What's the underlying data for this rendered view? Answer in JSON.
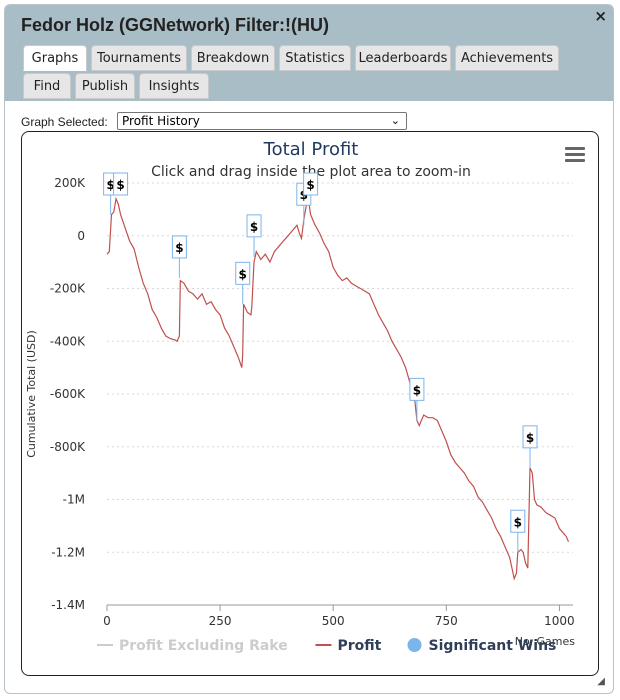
{
  "window": {
    "title": "Fedor Holz (GGNetwork) Filter:!(HU)",
    "close_label": "×"
  },
  "tabs_row1": [
    "Graphs",
    "Tournaments",
    "Breakdown",
    "Statistics",
    "Leaderboards",
    "Achievements"
  ],
  "tabs_row2": [
    "Find",
    "Publish",
    "Insights"
  ],
  "graph_selector": {
    "label": "Graph Selected:",
    "value": "Profit History"
  },
  "chart_data": {
    "type": "line",
    "title": "Total Profit",
    "subtitle": "Click and drag inside the plot area to zoom-in",
    "xlabel": "No. Games",
    "ylabel": "Cumulative Total (USD)",
    "xlim": [
      0,
      1030
    ],
    "ylim": [
      -1400000,
      200000
    ],
    "x_ticks": [
      0,
      250,
      500,
      750,
      1000
    ],
    "y_ticks": [
      200000,
      0,
      -200000,
      -400000,
      -600000,
      -800000,
      -1000000,
      -1200000,
      -1400000
    ],
    "y_tick_labels": [
      "200K",
      "0",
      "-200K",
      "-400K",
      "-600K",
      "-800K",
      "-1M",
      "-1.2M",
      "-1.4M"
    ],
    "grid": true,
    "legend_position": "bottom",
    "legend": [
      {
        "name": "Profit Excluding Rake",
        "color": "#cccccc",
        "symbol": "line"
      },
      {
        "name": "Profit",
        "color": "#c0504d",
        "symbol": "line"
      },
      {
        "name": "Significant Wins",
        "color": "#7cb5ec",
        "symbol": "circle"
      }
    ],
    "series": [
      {
        "name": "Profit",
        "color": "#c0504d",
        "points": [
          [
            0,
            -70000
          ],
          [
            5,
            -60000
          ],
          [
            10,
            80000
          ],
          [
            15,
            90000
          ],
          [
            20,
            140000
          ],
          [
            25,
            120000
          ],
          [
            30,
            80000
          ],
          [
            40,
            30000
          ],
          [
            50,
            -20000
          ],
          [
            60,
            -50000
          ],
          [
            70,
            -120000
          ],
          [
            80,
            -180000
          ],
          [
            90,
            -220000
          ],
          [
            100,
            -280000
          ],
          [
            110,
            -310000
          ],
          [
            120,
            -350000
          ],
          [
            130,
            -380000
          ],
          [
            140,
            -390000
          ],
          [
            150,
            -395000
          ],
          [
            155,
            -400000
          ],
          [
            160,
            -380000
          ],
          [
            162,
            -170000
          ],
          [
            170,
            -180000
          ],
          [
            180,
            -210000
          ],
          [
            190,
            -220000
          ],
          [
            200,
            -240000
          ],
          [
            210,
            -220000
          ],
          [
            220,
            -260000
          ],
          [
            230,
            -250000
          ],
          [
            240,
            -280000
          ],
          [
            250,
            -300000
          ],
          [
            260,
            -350000
          ],
          [
            270,
            -380000
          ],
          [
            280,
            -420000
          ],
          [
            290,
            -460000
          ],
          [
            298,
            -500000
          ],
          [
            300,
            -450000
          ],
          [
            302,
            -260000
          ],
          [
            310,
            -290000
          ],
          [
            318,
            -300000
          ],
          [
            320,
            -270000
          ],
          [
            325,
            -100000
          ],
          [
            330,
            -60000
          ],
          [
            340,
            -90000
          ],
          [
            350,
            -70000
          ],
          [
            360,
            -100000
          ],
          [
            370,
            -60000
          ],
          [
            380,
            -40000
          ],
          [
            390,
            -20000
          ],
          [
            400,
            0
          ],
          [
            410,
            20000
          ],
          [
            415,
            30000
          ],
          [
            420,
            40000
          ],
          [
            425,
            10000
          ],
          [
            430,
            -10000
          ],
          [
            435,
            60000
          ],
          [
            440,
            110000
          ],
          [
            445,
            140000
          ],
          [
            450,
            80000
          ],
          [
            460,
            40000
          ],
          [
            470,
            10000
          ],
          [
            480,
            -30000
          ],
          [
            490,
            -60000
          ],
          [
            500,
            -120000
          ],
          [
            510,
            -150000
          ],
          [
            520,
            -170000
          ],
          [
            530,
            -160000
          ],
          [
            540,
            -180000
          ],
          [
            550,
            -190000
          ],
          [
            560,
            -200000
          ],
          [
            570,
            -210000
          ],
          [
            580,
            -220000
          ],
          [
            590,
            -260000
          ],
          [
            600,
            -300000
          ],
          [
            610,
            -330000
          ],
          [
            620,
            -360000
          ],
          [
            630,
            -400000
          ],
          [
            640,
            -430000
          ],
          [
            650,
            -460000
          ],
          [
            660,
            -500000
          ],
          [
            670,
            -560000
          ],
          [
            680,
            -620000
          ],
          [
            685,
            -700000
          ],
          [
            690,
            -720000
          ],
          [
            695,
            -700000
          ],
          [
            700,
            -680000
          ],
          [
            710,
            -690000
          ],
          [
            720,
            -690000
          ],
          [
            730,
            -700000
          ],
          [
            740,
            -740000
          ],
          [
            750,
            -780000
          ],
          [
            760,
            -830000
          ],
          [
            770,
            -860000
          ],
          [
            780,
            -880000
          ],
          [
            790,
            -900000
          ],
          [
            800,
            -930000
          ],
          [
            810,
            -950000
          ],
          [
            820,
            -990000
          ],
          [
            830,
            -1010000
          ],
          [
            840,
            -1040000
          ],
          [
            850,
            -1070000
          ],
          [
            860,
            -1110000
          ],
          [
            870,
            -1140000
          ],
          [
            880,
            -1180000
          ],
          [
            890,
            -1220000
          ],
          [
            900,
            -1300000
          ],
          [
            905,
            -1280000
          ],
          [
            908,
            -1200000
          ],
          [
            915,
            -1190000
          ],
          [
            920,
            -1200000
          ],
          [
            925,
            -1240000
          ],
          [
            930,
            -1260000
          ],
          [
            935,
            -880000
          ],
          [
            940,
            -900000
          ],
          [
            945,
            -1000000
          ],
          [
            950,
            -1020000
          ],
          [
            960,
            -1030000
          ],
          [
            970,
            -1050000
          ],
          [
            980,
            -1060000
          ],
          [
            990,
            -1070000
          ],
          [
            1000,
            -1110000
          ],
          [
            1010,
            -1130000
          ],
          [
            1015,
            -1140000
          ],
          [
            1020,
            -1160000
          ]
        ]
      }
    ],
    "significant_wins": [
      {
        "x": 8,
        "y": 80000,
        "label": "$"
      },
      {
        "x": 30,
        "y": 200000,
        "label": "$"
      },
      {
        "x": 160,
        "y": -160000,
        "label": "$"
      },
      {
        "x": 300,
        "y": -260000,
        "label": "$"
      },
      {
        "x": 325,
        "y": -80000,
        "label": "$"
      },
      {
        "x": 435,
        "y": 40000,
        "label": "$"
      },
      {
        "x": 450,
        "y": 200000,
        "label": "$"
      },
      {
        "x": 685,
        "y": -700000,
        "label": "$"
      },
      {
        "x": 908,
        "y": -1200000,
        "label": "$"
      },
      {
        "x": 935,
        "y": -880000,
        "label": "$"
      }
    ]
  }
}
